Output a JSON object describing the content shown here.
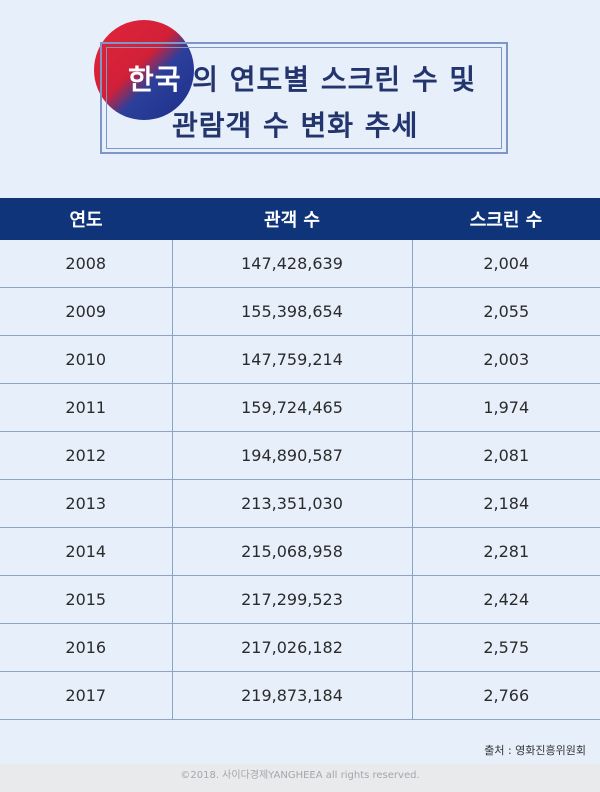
{
  "title": {
    "accent": "한국",
    "line1_rest": " 의 연도별 스크린 수 및",
    "line2": "관람객 수 변화 추세"
  },
  "table": {
    "headers": [
      "연도",
      "관객 수",
      "스크린 수"
    ],
    "rows": [
      [
        "2008",
        "147,428,639",
        "2,004"
      ],
      [
        "2009",
        "155,398,654",
        "2,055"
      ],
      [
        "2010",
        "147,759,214",
        "2,003"
      ],
      [
        "2011",
        "159,724,465",
        "1,974"
      ],
      [
        "2012",
        "194,890,587",
        "2,081"
      ],
      [
        "2013",
        "213,351,030",
        "2,184"
      ],
      [
        "2014",
        "215,068,958",
        "2,281"
      ],
      [
        "2015",
        "217,299,523",
        "2,424"
      ],
      [
        "2016",
        "217,026,182",
        "2,575"
      ],
      [
        "2017",
        "219,873,184",
        "2,766"
      ]
    ]
  },
  "source": "출처 : 영화진흥위원회",
  "footer": "©2018. 사이다경제YANGHEEA all rights reserved.",
  "colors": {
    "header_bg": "#10347a",
    "title_text": "#24346d",
    "background": "#e6effa"
  }
}
